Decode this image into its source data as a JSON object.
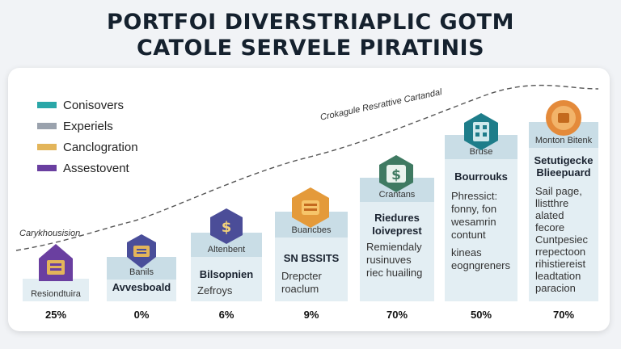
{
  "title": {
    "line1": "PORTFOI DIVERSTRIAPLIC GOTM",
    "line2": "CATOLE SERVELE PIRATINIS"
  },
  "legend": [
    {
      "label": "Conisovers",
      "color": "#2aa7a8"
    },
    {
      "label": "Experiels",
      "color": "#9aa2ad"
    },
    {
      "label": "Canclogration",
      "color": "#e3b55a"
    },
    {
      "label": "Assestovent",
      "color": "#6a3fa0"
    }
  ],
  "trend_labels": {
    "start": "Carykhousision",
    "mid": "Crokagule Resrattive Cartandal"
  },
  "columns": [
    {
      "head": "Resiondtuira",
      "label": "",
      "desc": [],
      "pct": "25%",
      "icon": "house-icon",
      "icon_color": "#6a3fa0"
    },
    {
      "head": "Banils",
      "label": "Avvesboald",
      "desc": [],
      "pct": "0%",
      "icon": "shield-icon",
      "icon_color": "#4a4e9a"
    },
    {
      "head": "Altenbent",
      "label": "Bilsopnien",
      "desc": [
        "Zefroys"
      ],
      "pct": "6%",
      "icon": "dollar-hex-icon",
      "icon_color": "#4b4d98"
    },
    {
      "head": "Buaricbes",
      "label": "SN BSSITS",
      "desc": [
        "Drepcter",
        "roaclum"
      ],
      "pct": "9%",
      "icon": "stack-hex-icon",
      "icon_color": "#e49a3a"
    },
    {
      "head": "Crantans",
      "label": "Riedures Ioiveprest",
      "desc": [
        "Remiendaly",
        "rusinuves",
        "riec huailing"
      ],
      "pct": "70%",
      "icon": "dollar-hex-icon",
      "icon_color": "#3f7a62"
    },
    {
      "head": "Bruse",
      "label": "Bourrouks",
      "desc": [
        "Phressict:",
        "fonny, fon",
        "wesamrin",
        "contunt",
        "kineas",
        "eogngreners"
      ],
      "pct": "50%",
      "icon": "building-hex-icon",
      "icon_color": "#1e7d8a"
    },
    {
      "head": "Monton Bitenk",
      "label": "Setutigecke Blieepuard",
      "desc": [
        "Sail page,",
        "llistthre",
        "alated",
        "fecore",
        "Cuntpesiec",
        "rrepectoon",
        "rihistiereist",
        "leadtation",
        "paracion"
      ],
      "pct": "70%",
      "icon": "coin-icon",
      "icon_color": "#e48a3a"
    }
  ],
  "chart_data": {
    "type": "bar",
    "title": "PORTFOI DIVERSTRIAPLIC GOTM CATOLE SERVELE PIRATINIS",
    "categories": [
      "Resiondtuira",
      "Banils",
      "Altenbent",
      "Buaricbes",
      "Crantans",
      "Bruse",
      "Monton Bitenk"
    ],
    "values": [
      25,
      0,
      6,
      9,
      70,
      50,
      70
    ],
    "value_labels": [
      "25%",
      "0%",
      "6%",
      "9%",
      "70%",
      "50%",
      "70%"
    ],
    "legend": [
      "Conisovers",
      "Experiels",
      "Canclogration",
      "Assestovent"
    ],
    "legend_placement": "top-left",
    "grid": false
  }
}
